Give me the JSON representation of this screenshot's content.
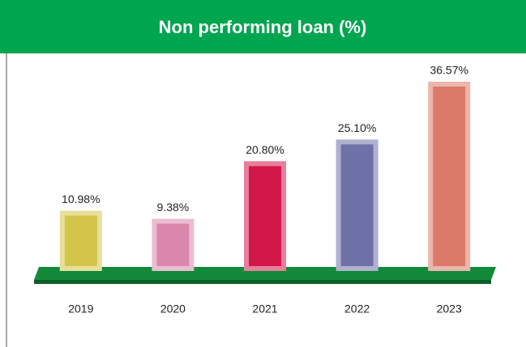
{
  "chart_data": {
    "type": "bar",
    "title": "Non performing loan (%)",
    "categories": [
      "2019",
      "2020",
      "2021",
      "2022",
      "2023"
    ],
    "values": [
      10.98,
      9.38,
      20.8,
      25.1,
      36.57
    ],
    "value_labels": [
      "10.98%",
      "9.38%",
      "20.80%",
      "25.10%",
      "36.57%"
    ],
    "colors": [
      "#d4c44a",
      "#d987aa",
      "#d4174a",
      "#6f72a8",
      "#dc7a6a"
    ]
  }
}
